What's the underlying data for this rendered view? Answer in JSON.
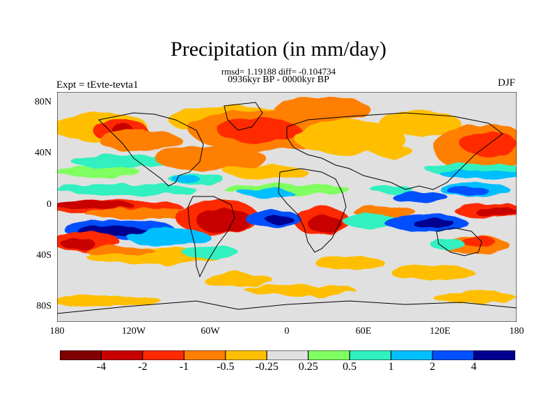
{
  "title": "Precipitation (in mm/day)",
  "stats_line": "rmsd= 1.19188 diff= -0.104734",
  "period_line": "0936kyr BP - 0000kyr BP",
  "experiment_label": "Expt = tEvte-tevta1",
  "season_label": "DJF",
  "lat_ticks": [
    "80N",
    "40N",
    "0",
    "40S",
    "80S"
  ],
  "lon_ticks": [
    "180",
    "120W",
    "60W",
    "0",
    "60E",
    "120E",
    "180"
  ],
  "colorbar": {
    "labels": [
      "-4",
      "-2",
      "-1",
      "-0.5",
      "-0.25",
      "0.25",
      "0.5",
      "1",
      "2",
      "4"
    ],
    "colors": [
      "#800000",
      "#c80000",
      "#ff2a00",
      "#ff7f00",
      "#ffbf00",
      "#e0e0e0",
      "#80ff60",
      "#30f0c0",
      "#00bfff",
      "#0050ff",
      "#000090"
    ]
  }
}
